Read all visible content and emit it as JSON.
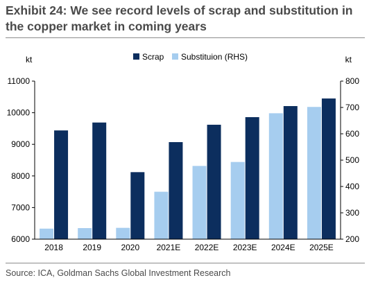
{
  "header": {
    "title": "Exhibit 24: We see record levels of scrap and substitution in the copper market in coming years"
  },
  "footer": {
    "source": "Source: ICA, Goldman Sachs Global Investment Research"
  },
  "colors": {
    "title_text": "#4a4a4a",
    "divider": "#8c8c8c",
    "scrap": "#0c2e5e",
    "substitution": "#a6cdef",
    "axis": "#000000"
  },
  "chart_data": {
    "type": "bar",
    "categories": [
      "2018",
      "2019",
      "2020",
      "2021E",
      "2022E",
      "2023E",
      "2024E",
      "2025E"
    ],
    "series": [
      {
        "name": "Scrap",
        "axis": "left",
        "color": "#0c2e5e",
        "values": [
          9440,
          9690,
          8120,
          9070,
          9620,
          9860,
          10210,
          10450
        ]
      },
      {
        "name": "Substituion (RHS)",
        "axis": "right",
        "color": "#a6cdef",
        "values": [
          240,
          242,
          243,
          380,
          478,
          493,
          678,
          702
        ]
      }
    ],
    "y_left": {
      "label": "kt",
      "min": 6000,
      "max": 11000,
      "ticks": [
        6000,
        7000,
        8000,
        9000,
        10000,
        11000
      ]
    },
    "y_right": {
      "label": "kt",
      "min": 200,
      "max": 800,
      "ticks": [
        200,
        300,
        400,
        500,
        600,
        700,
        800
      ]
    },
    "grid": false,
    "legend_position": "top-center",
    "bar_order": [
      "Substituion (RHS)",
      "Scrap"
    ]
  }
}
